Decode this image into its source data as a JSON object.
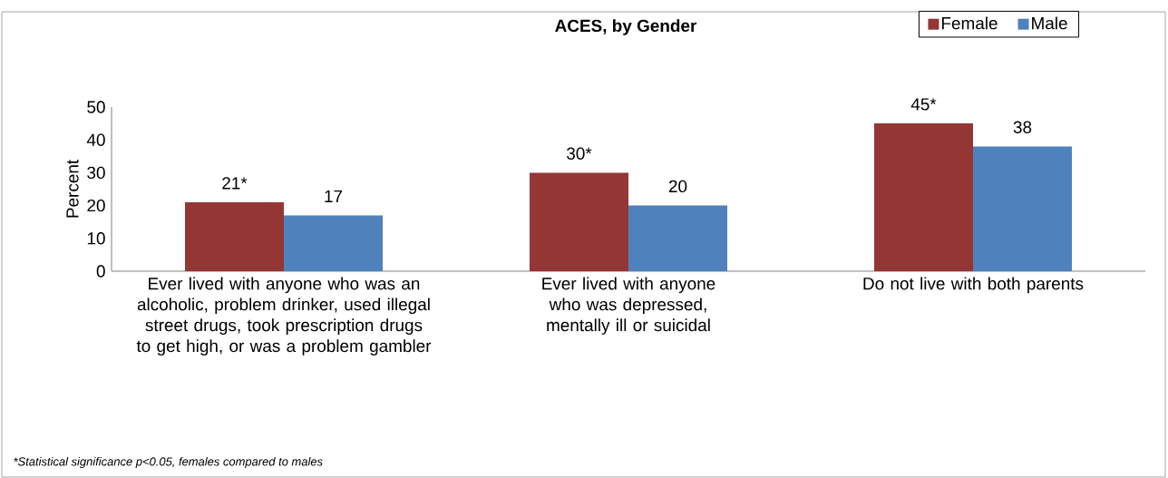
{
  "chart_data": {
    "type": "bar",
    "title": "ACES,  by Gender",
    "ylabel": "Percent",
    "categories": [
      "Ever lived with anyone who was an alcoholic, problem drinker, used illegal street drugs, took prescription drugs to get high, or was a problem gambler",
      "Ever lived with anyone who was depressed,\nmentally ill or suicidal",
      "Do not live with both parents"
    ],
    "series": [
      {
        "name": "Female",
        "color": "#943634",
        "values": [
          21,
          30,
          45
        ],
        "value_labels": [
          "21*",
          "30*",
          "45*"
        ]
      },
      {
        "name": "Male",
        "color": "#4f81bd",
        "values": [
          17,
          20,
          38
        ],
        "value_labels": [
          "17",
          "20",
          "38"
        ]
      }
    ],
    "ylim": [
      0,
      50
    ],
    "yticks": [
      0,
      10,
      20,
      30,
      40,
      50
    ],
    "legend": "top right",
    "annotations": [
      "*Statistical significance p<0.05, females compared to males"
    ]
  }
}
